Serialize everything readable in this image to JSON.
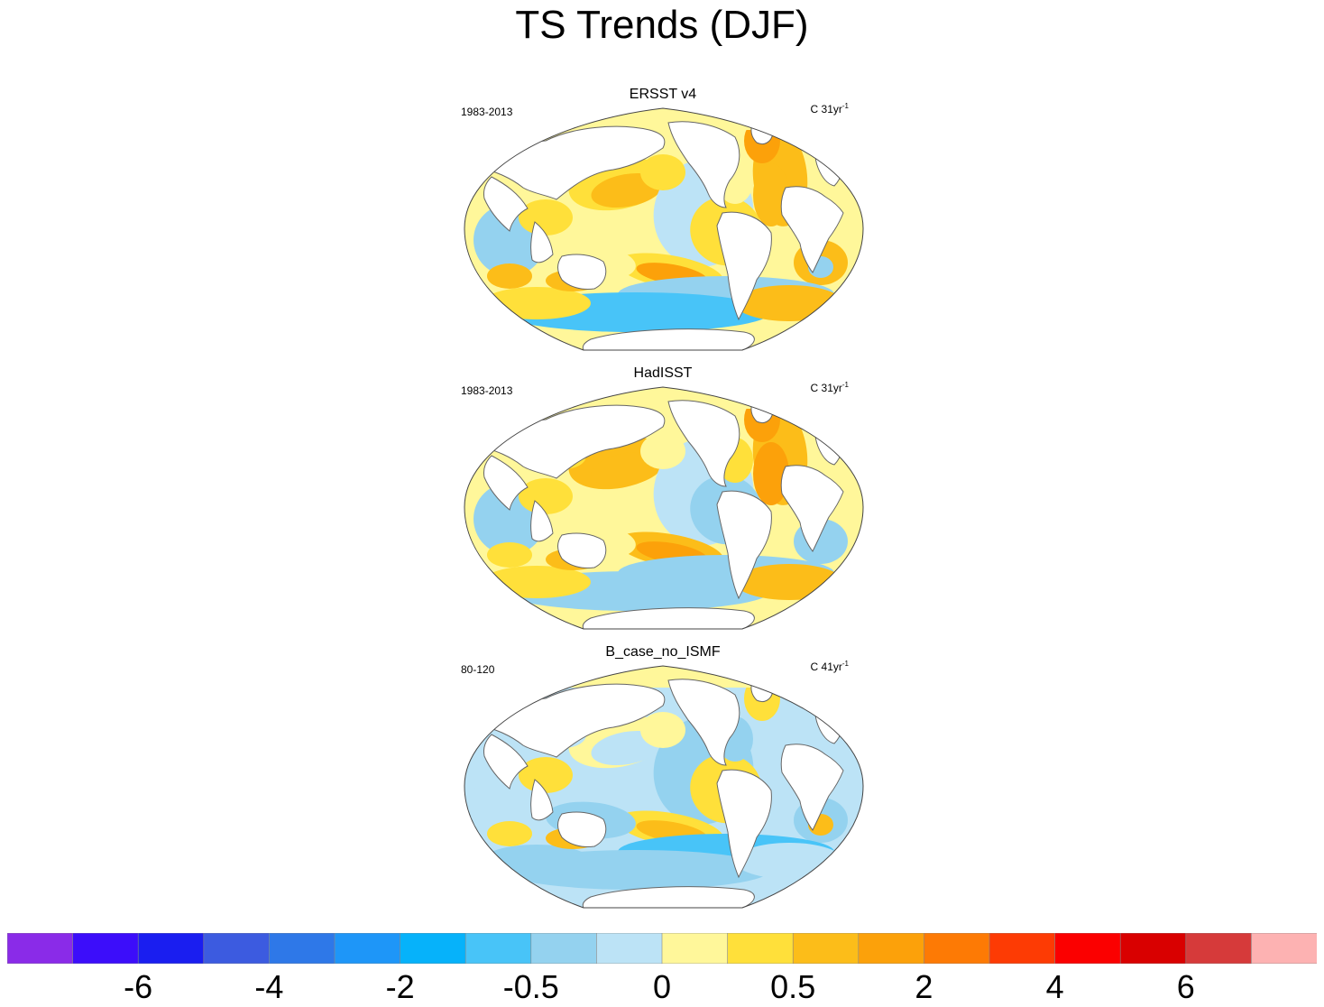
{
  "chart_data": {
    "type": "heatmap",
    "title": "TS Trends (DJF)",
    "panels": [
      {
        "title": "ERSST v4",
        "period": "1983-2013",
        "units": "C 31yr",
        "units_sup": "-1"
      },
      {
        "title": "HadISST",
        "period": "1983-2013",
        "units": "C 31yr",
        "units_sup": "-1"
      },
      {
        "title": "B_case_no_ISMF",
        "period": "80-120",
        "units": "C 41yr",
        "units_sup": "-1"
      }
    ],
    "colorbar": {
      "colors": [
        "#8a2be8",
        "#3c0dfa",
        "#1a1ef0",
        "#3c5be0",
        "#2e78e8",
        "#1e96f8",
        "#06b2fa",
        "#48c4f8",
        "#94d2ef",
        "#bce3f6",
        "#fff79a",
        "#ffe03a",
        "#fcbd19",
        "#fca10a",
        "#fd7a05",
        "#fd3b04",
        "#fb0000",
        "#d90000",
        "#d63a3a",
        "#fdb2b2"
      ],
      "tick_labels": [
        "-6",
        "-4",
        "-2",
        "-0.5",
        "0",
        "0.5",
        "2",
        "4",
        "6"
      ],
      "tick_boundary_index": [
        2,
        4,
        6,
        8,
        10,
        12,
        14,
        16,
        18
      ]
    }
  }
}
